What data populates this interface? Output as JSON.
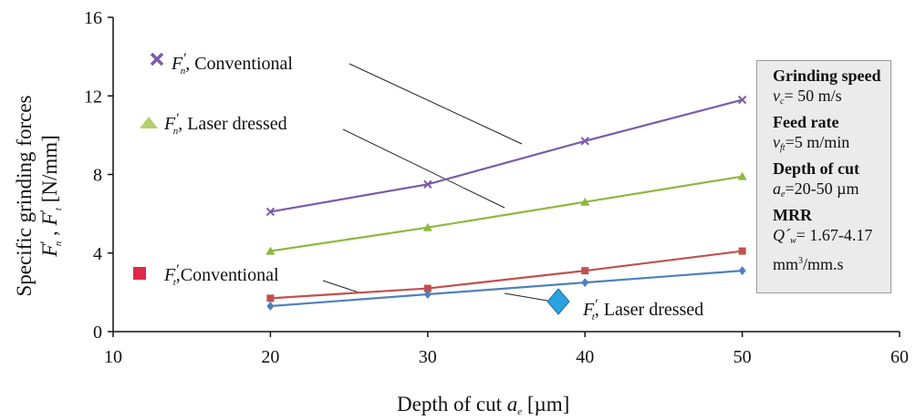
{
  "chart_data": {
    "type": "line",
    "xlabel": "Depth of cut a_e  [µm]",
    "ylabel": "Specific grinding forces F'_n , F'_t  [N/mm]",
    "xlim": [
      10,
      60
    ],
    "ylim": [
      0,
      16
    ],
    "x_ticks": [
      "10",
      "20",
      "30",
      "40",
      "50",
      "60"
    ],
    "y_ticks": [
      "0",
      "4",
      "8",
      "12",
      "16"
    ],
    "grid": false,
    "x": [
      20,
      30,
      40,
      50
    ],
    "series": [
      {
        "name": "F'n, Conventional",
        "values": [
          6.1,
          7.5,
          9.7,
          11.8
        ],
        "color": "#7b5ba6",
        "marker": "x"
      },
      {
        "name": "F'n, Laser dressed",
        "values": [
          4.1,
          5.3,
          6.6,
          7.9
        ],
        "color": "#8db83f",
        "marker": "triangle"
      },
      {
        "name": "F't, Conventional",
        "values": [
          1.7,
          2.2,
          3.1,
          4.1
        ],
        "color": "#c0504d",
        "marker": "square"
      },
      {
        "name": "F't, Laser dressed",
        "values": [
          1.3,
          1.9,
          2.5,
          3.1
        ],
        "color": "#4f81bd",
        "marker": "diamond"
      }
    ]
  },
  "legend_text": {
    "fn_conv": "Conventional",
    "fn_laser": "Laser dressed",
    "ft_conv": "Conventional",
    "ft_laser": "Laser dressed"
  },
  "legend_marker_colors": {
    "fn_conv": "#7b5ba6",
    "fn_laser": "#b5cf6e",
    "ft_conv": "#e0284a",
    "ft_laser": "#2aa4e0"
  },
  "info_box": {
    "speed_heading": "Grinding speed",
    "speed_symbol": "v",
    "speed_sub": "c",
    "speed_value": "= 50 m/s",
    "feed_heading": "Feed rate",
    "feed_symbol": "v",
    "feed_sub": "ft",
    "feed_value": "=5 m/min",
    "depth_heading": "Depth of cut",
    "depth_symbol": "a",
    "depth_sub": "e",
    "depth_value": "=20-50 µm",
    "mrr_heading": "MRR",
    "mrr_symbol": "Q´",
    "mrr_sub": "w",
    "mrr_value": "= 1.67-4.17",
    "mrr_unit_a": "mm",
    "mrr_unit_sup": "3",
    "mrr_unit_b": "/mm.s"
  }
}
